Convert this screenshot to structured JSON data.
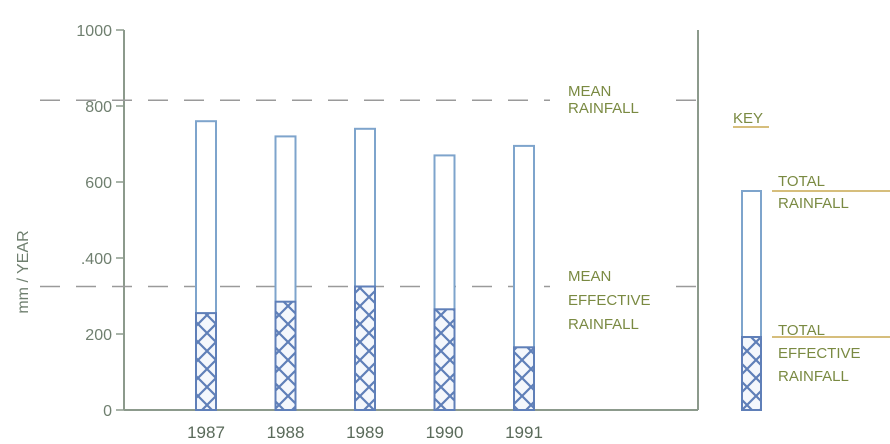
{
  "chart_data": {
    "type": "bar",
    "categories": [
      "1987",
      "1988",
      "1989",
      "1990",
      "1991"
    ],
    "series": [
      {
        "name": "TOTAL RAINFALL",
        "values": [
          760,
          720,
          740,
          670,
          695
        ]
      },
      {
        "name": "TOTAL EFFECTIVE RAINFALL",
        "values": [
          255,
          285,
          325,
          265,
          165
        ]
      }
    ],
    "ylabel": "mm / YEAR",
    "ylim": [
      0,
      1000
    ],
    "yticks": [
      0,
      200,
      400,
      600,
      800,
      1000
    ],
    "ytick_labels": [
      "0",
      "200",
      ".400",
      "600",
      "800",
      "1000"
    ],
    "grid": false,
    "reference_lines": [
      {
        "value": 815,
        "label_lines": [
          "MEAN",
          "RAINFALL"
        ]
      },
      {
        "value": 325,
        "label_lines": [
          "MEAN",
          "EFFECTIVE",
          "RAINFALL"
        ]
      }
    ],
    "key": {
      "title": "KEY",
      "total_label": [
        "TOTAL",
        "RAINFALL"
      ],
      "effective_label": [
        "TOTAL",
        "EFFECTIVE",
        "RAINFALL"
      ]
    },
    "colors": {
      "bar_outline": "#7ea4cc",
      "hatch": "#5f7fb8",
      "dashed_line": "#9a9a9a",
      "axis": "#8c9a8c",
      "labels": "#7a8a42",
      "key_title": "#7a8a42",
      "key_underline": "#c9a850"
    }
  }
}
